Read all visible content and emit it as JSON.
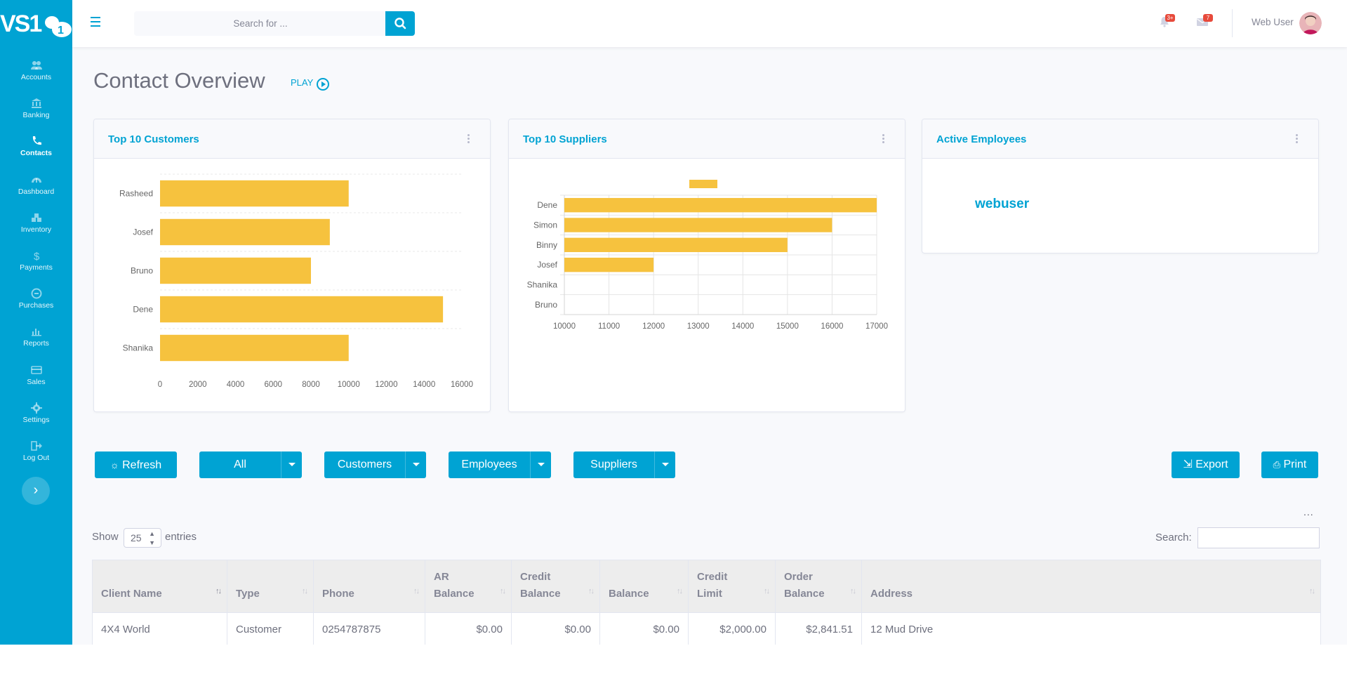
{
  "logo": {
    "text": "VS1"
  },
  "sidebar": {
    "items": [
      {
        "label": "Accounts",
        "icon": "users-icon"
      },
      {
        "label": "Banking",
        "icon": "bank-icon"
      },
      {
        "label": "Contacts",
        "icon": "phone-icon",
        "active": true
      },
      {
        "label": "Dashboard",
        "icon": "gauge-icon"
      },
      {
        "label": "Inventory",
        "icon": "boxes-icon"
      },
      {
        "label": "Payments",
        "icon": "dollar-icon"
      },
      {
        "label": "Purchases",
        "icon": "cart-icon"
      },
      {
        "label": "Reports",
        "icon": "chart-icon"
      },
      {
        "label": "Sales",
        "icon": "card-icon"
      },
      {
        "label": "Settings",
        "icon": "gear-icon"
      },
      {
        "label": "Log Out",
        "icon": "logout-icon"
      }
    ],
    "toggle_icon": "chevron-right-icon"
  },
  "topbar": {
    "search_placeholder": "Search for ...",
    "alerts_badge": "3+",
    "messages_badge": "7",
    "user_name": "Web User"
  },
  "page": {
    "title": "Contact Overview",
    "play_label": "PLAY"
  },
  "cards": {
    "customers": {
      "title": "Top 10 Customers"
    },
    "suppliers": {
      "title": "Top 10 Suppliers"
    },
    "employees": {
      "title": "Active Employees",
      "employee_name": "webuser"
    }
  },
  "chart_data": [
    {
      "type": "bar",
      "orientation": "horizontal",
      "title": "Top 10 Customers",
      "categories": [
        "Rasheed",
        "Josef",
        "Bruno",
        "Dene",
        "Shanika"
      ],
      "values": [
        10000,
        9000,
        8000,
        15000,
        10000
      ],
      "xlim": [
        0,
        16000
      ],
      "xticks": [
        0,
        2000,
        4000,
        6000,
        8000,
        10000,
        12000,
        14000,
        16000
      ],
      "grid": "horizontal dashed",
      "color": "#f6c23e"
    },
    {
      "type": "bar",
      "orientation": "horizontal",
      "title": "Top 10 Suppliers",
      "categories": [
        "Dene",
        "Simon",
        "Binny",
        "Josef",
        "Shanika",
        "Bruno"
      ],
      "values": [
        17000,
        16000,
        15000,
        12000,
        10000,
        10000
      ],
      "xlim": [
        10000,
        17000
      ],
      "xticks": [
        10000,
        11000,
        12000,
        13000,
        14000,
        15000,
        16000,
        17000
      ],
      "grid": "both",
      "legend": "top",
      "color": "#f6c23e"
    }
  ],
  "filters": {
    "refresh": "Refresh",
    "all": "All",
    "customers": "Customers",
    "employees": "Employees",
    "suppliers": "Suppliers",
    "export": "Export",
    "print": "Print"
  },
  "table": {
    "more": "...",
    "show_label": "Show",
    "entries_value": "25",
    "entries_label": "entries",
    "search_label": "Search:",
    "columns": [
      "Client Name",
      "Type",
      "Phone",
      "AR Balance",
      "Credit Balance",
      "Balance",
      "Credit Limit",
      "Order Balance",
      "Address"
    ],
    "rows": [
      [
        "4X4 World",
        "Customer",
        "0254787875",
        "$0.00",
        "$0.00",
        "$0.00",
        "$2,000.00",
        "$2,841.51",
        "12 Mud Drive"
      ]
    ]
  }
}
